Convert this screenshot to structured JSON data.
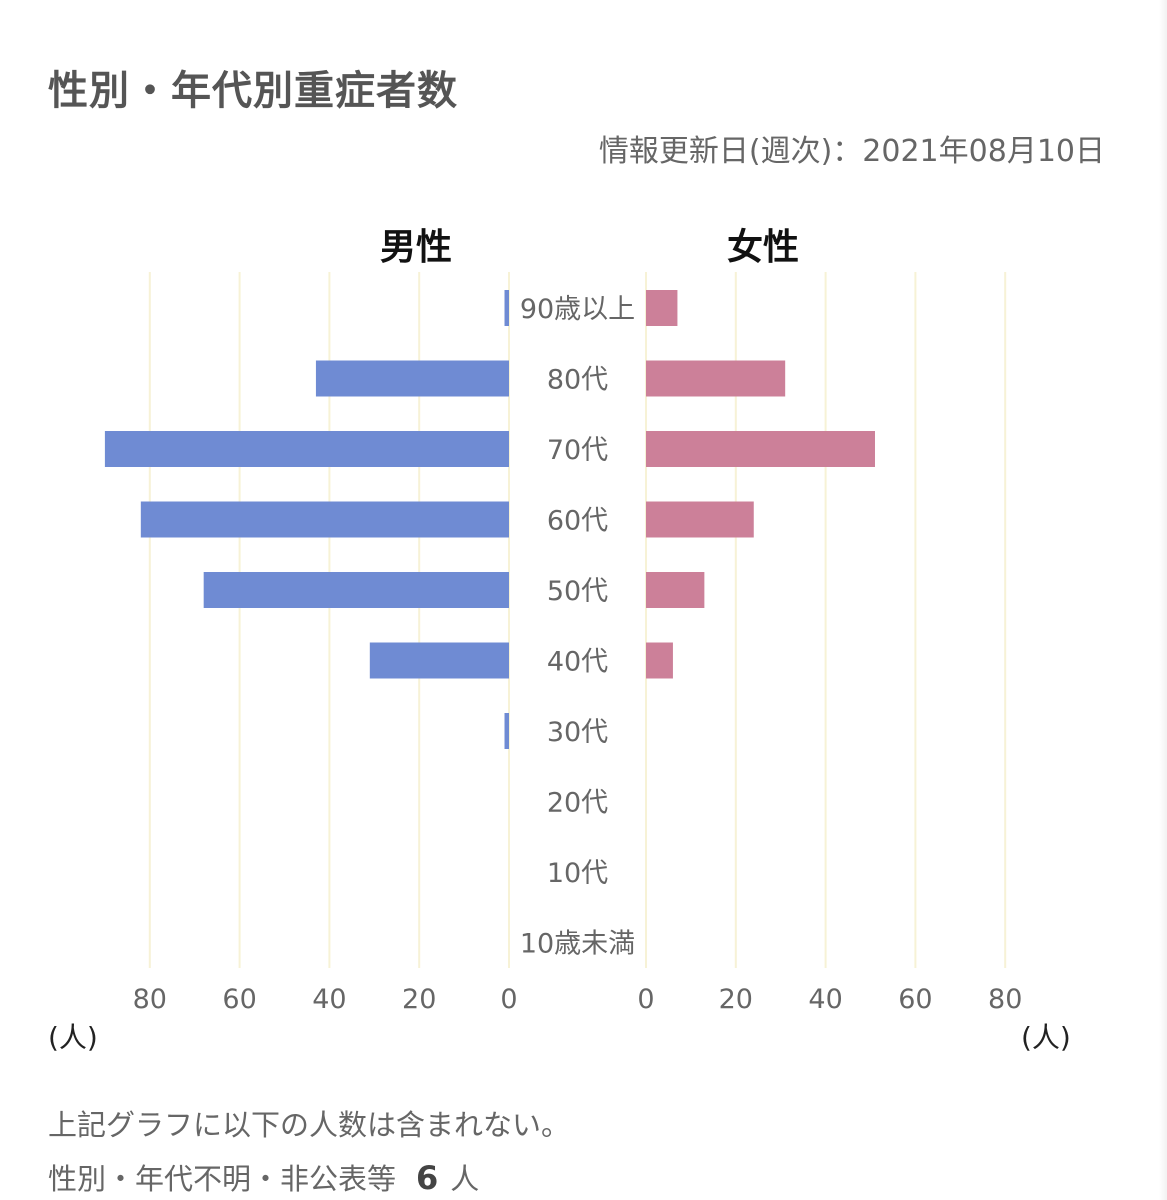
{
  "header": {
    "title": "性別・年代別重症者数",
    "updated": "情報更新日(週次)：2021年08月10日"
  },
  "chart_data": {
    "type": "bar",
    "orientation": "horizontal-population-pyramid",
    "title": "性別・年代別重症者数",
    "categories": [
      "90歳以上",
      "80代",
      "70代",
      "60代",
      "50代",
      "40代",
      "30代",
      "20代",
      "10代",
      "10歳未満"
    ],
    "series": [
      {
        "name": "男性",
        "color": "#6f8bd3",
        "values": [
          1,
          43,
          90,
          82,
          68,
          31,
          1,
          0,
          0,
          0
        ]
      },
      {
        "name": "女性",
        "color": "#cc8099",
        "values": [
          7,
          31,
          51,
          24,
          13,
          6,
          0,
          0,
          0,
          0
        ]
      }
    ],
    "xlim": [
      0,
      80
    ],
    "ticks": [
      0,
      20,
      40,
      60,
      80
    ],
    "xlabel": "(人)",
    "grid": true,
    "grid_color": "#f7f2d6"
  },
  "footer": {
    "note": "上記グラフに以下の人数は含まれない。",
    "excluded_label": "性別・年代不明・非公表等",
    "excluded_count": "6",
    "excluded_unit": "人"
  }
}
